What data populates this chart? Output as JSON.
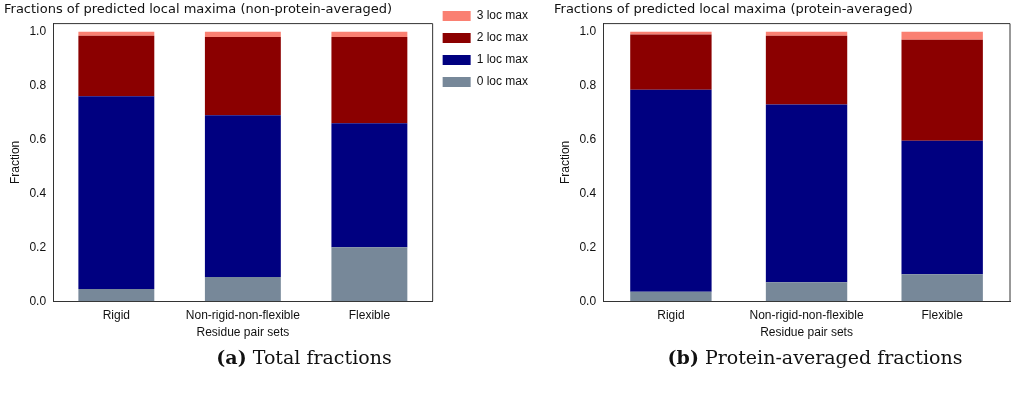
{
  "chart_data": [
    {
      "type": "bar",
      "title": "Fractions of predicted local maxima (non-protein-averaged)",
      "xlabel": "Residue pair sets",
      "ylabel": "Fraction",
      "categories": [
        "Rigid",
        "Non-rigid-non-flexible",
        "Flexible"
      ],
      "stacked": true,
      "ylim": [
        0,
        1.03
      ],
      "yticks": [
        {
          "value": 0,
          "label": "0.0"
        },
        {
          "value": 0.2,
          "label": "0.2"
        },
        {
          "value": 0.4,
          "label": "0.4"
        },
        {
          "value": 0.6,
          "label": "0.6"
        },
        {
          "value": 0.8,
          "label": "0.8"
        },
        {
          "value": 1,
          "label": "1.0"
        }
      ],
      "grid": false,
      "legend": "top right",
      "series": [
        {
          "name": "0 loc max",
          "color": "#778899",
          "values": [
            0.045,
            0.09,
            0.2
          ]
        },
        {
          "name": "1 loc max",
          "color": "#000080",
          "values": [
            0.715,
            0.6,
            0.46
          ]
        },
        {
          "name": "2 loc max",
          "color": "#8b0000",
          "values": [
            0.225,
            0.29,
            0.32
          ]
        },
        {
          "name": "3 loc max",
          "color": "#fa8072",
          "values": [
            0.015,
            0.02,
            0.02
          ]
        }
      ],
      "annotations": [
        "(a) Total fractions"
      ]
    },
    {
      "type": "bar",
      "title": "Fractions of predicted local maxima (protein-averaged)",
      "xlabel": "Residue pair sets",
      "ylabel": "Fraction",
      "categories": [
        "Rigid",
        "Non-rigid-non-flexible",
        "Flexible"
      ],
      "stacked": true,
      "ylim": [
        0,
        1.03
      ],
      "yticks": [
        {
          "value": 0,
          "label": "0.0"
        },
        {
          "value": 0.2,
          "label": "0.2"
        },
        {
          "value": 0.4,
          "label": "0.4"
        },
        {
          "value": 0.6,
          "label": "0.6"
        },
        {
          "value": 0.8,
          "label": "0.8"
        },
        {
          "value": 1,
          "label": "1.0"
        }
      ],
      "grid": false,
      "legend": false,
      "series": [
        {
          "color": "#778899",
          "values": [
            0.035,
            0.07,
            0.1
          ]
        },
        {
          "color": "#000080",
          "values": [
            0.75,
            0.66,
            0.495
          ]
        },
        {
          "color": "#8b0000",
          "values": [
            0.205,
            0.255,
            0.375
          ]
        },
        {
          "color": "#fa8072",
          "values": [
            0.01,
            0.015,
            0.03
          ]
        }
      ],
      "annotations": [
        "(b) Protein-averaged fractions"
      ]
    }
  ]
}
